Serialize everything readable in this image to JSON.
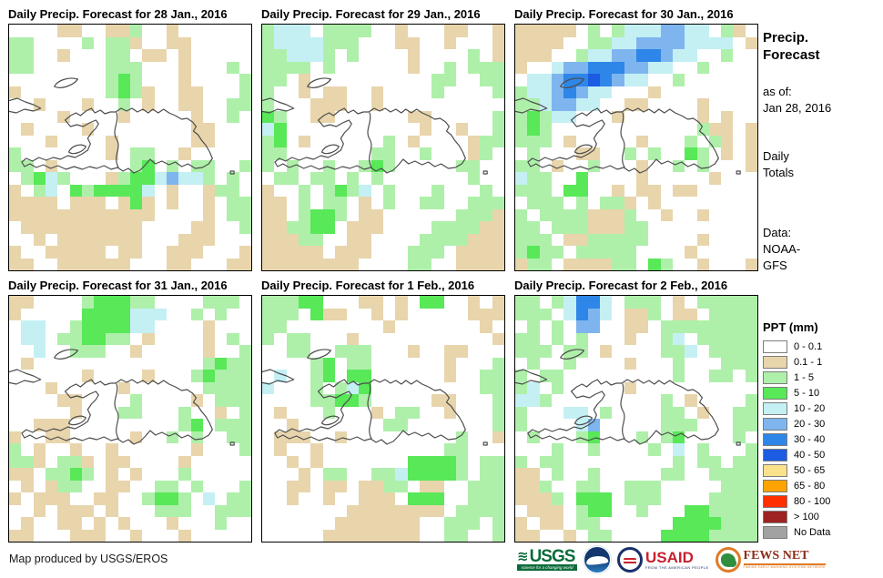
{
  "panels": [
    {
      "title": "Daily Precip. Forecast for 28 Jan., 2016",
      "grid": [
        "....tt..ttg..t......",
        "gg....g.ggt..tt.....",
        "gg..t...gg.tt.t.....",
        "gg......ggg...t...g.",
        "........gGg...t....g",
        "t.......gGgt..tt...g",
        "..t...t..g.t..tt..gg",
        "....t....t.....t..g.",
        ".t....t........tt...",
        "...t....t......tt...",
        "g.......t.gg..t.....",
        "gg.t......gG.g.gg..g",
        ".gGcg...tgGGcbccg.g.",
        "t.gc.GgGGGGc.t..tgg.",
        "tttt.ttt.tGt.t..t.gg",
        "tttttttttttt....t.gg",
        ".tttttttttt....tt..g",
        "..t.ttttttt...ttt...",
        "t..ttttt.tt..ttt...t",
        "tt..tttttt...tt...tt"
      ]
    },
    {
      "title": "Daily Precip. Forecast for 29 Jan., 2016",
      "grid": [
        "gccc.gggg..t...tt..t",
        "gccccggg...tt..t...t",
        "ggcccg.g....t....g.t",
        "gggg.g......t..g.ggg",
        "gg.t..........gg..gg",
        "g..t.tt..t....g....g",
        "g...ttt..t..........",
        "Gg..tt......tt.....g",
        "cG...........t..t..g",
        "gG.t......g.t....tgg",
        "gg.......gg..g...tg.",
        "g.g..g..gGg.....gg..",
        ".gg.gg.g.g.......g..",
        "t..g.gGgc.g...g...g.",
        "tt.g.gg.t.g..gg..ggg",
        "tt.gGGg.tt......gggt",
        "ttggGG.ttt....ggggtt",
        "tttgg..tt....ggggttt",
        "ttttt.ttt...ggg.tttt",
        "tttttttt....gg..tttt"
      ]
    },
    {
      "title": "Daily Precip. Forecast for 30 Jan., 2016",
      "grid": [
        "ttttt.g.gcccbbcc.gt.",
        "tttt..ggccbbbbcccc.t",
        "ttt..gccbbBBbcc..g..",
        "t..cbbBBBbbcc..g....",
        ".ccbBBDBbcc..g......",
        "gccbBbcc...t........",
        "ggcbbcc..tt....t....",
        "gGgcc...t......t.t..",
        "gGg............gtt.t",
        "ggg.t.....t...g.gt.t",
        ".g...tt..g.g..Gg.t.t",
        "gg.t..g...t..g.g...t",
        "cgg..G....t.....t...",
        "ggg.GG..t.tt.tt.....",
        ".ggg.g.ggt.t........",
        "g.ggggtttg..t..t....",
        "gg.gggtttgg.........",
        "ggg.ttggggg....t....",
        "gGgg.ggggg....t.....",
        "tgg.ttttgg.Gg..t...t"
      ]
    },
    {
      "title": "Daily Precip. Forecast for 31 Jan., 2016",
      "grid": [
        "tt....gGGGgg....ggg.",
        "t.....GGGGccc..g.g..",
        ".cc..gGGGGcc....t...",
        ".cc.ggGGgg.t....t.g.",
        "..c..ggg..t.....t..g",
        ".t..............gGgg",
        "......t....t...gGggg",
        "...t.....t......gggg",
        "....tt....g....t.ggg",
        ".....t...gg...g..t.g",
        "..ttt.........gG.ggg",
        "t..tt.....t..g.g..gg",
        "g.t..t..t......t...g",
        "ggt.ggt.tt....t.....",
        "tt.ggGg.t.t...g.....",
        ".t.tgg..tt..gg.g...g",
        "t.ttt..tt..gGGg.c.gg",
        "..t.ttt.t...ggg..ggg",
        ".t..tt.t.t...t...g..",
        "tt...ttt..t...t....."
      ]
    },
    {
      "title": "Daily Precip. Forecast for 1 Feb., 2016",
      "grid": [
        "gggGG...tt.t.GG..t.t",
        "ggg.Gtt..t.t.....ttt",
        "gg........t.......t.",
        "g.gg...t...........t",
        "..gg..ggg...t..tt...",
        "....gG.gg......t...g",
        ".c..gG.GG......t..gg",
        "c...g.gcG.........gg",
        "....ggGGg.....tt...g",
        ".t...g...t.gg..t...g",
        "..t.......gg.......g",
        ".ttt..t.........g..t",
        ".t..t..........gg...",
        "..t.t.......GGGGg.gg",
        "...t.gg..ggcGGGGg.gg",
        "..tt.tt.ttgg.tt..ggg",
        "..t..t..ttt.GGG..ggg",
        ".......tttttttt.gggg",
        "......ttttttt..ggg.g",
        ".....tttttttt..gg..g"
      ]
    },
    {
      "title": "Daily Precip. Forecast for 2 Feb., 2016",
      "grid": [
        "gg.gcBBc.ggg.t.ggggg",
        "ggg.cBbc.ttg.tt.gggg",
        ".g.g.bb..tt.gggggggg",
        "gg.g.g...t..gc.ggggg",
        "ggg.gg.t....ggc.gggg",
        ".g..g....t...g...ggg",
        "g.gg.........g..gg.g",
        "gc.g.....t..........",
        "ccg.........g.t....g",
        "g...cc.g....gg.t..gg",
        "g....cb.....ggg...gg",
        ".g...gG...g.gG....g.",
        "...g..g....g.c.g...g",
        "g.gg.........g.gg.gg",
        "tt.g..g.....gg..gggg",
        "ttg..gg..ggg.....ggg",
        "tttg.GGG.ggg....gggg",
        ".ttt.gGG..g...GGgggg",
        "t.tt.gg......GGGGggg",
        "tt..t.gg....GGGGgggg"
      ]
    }
  ],
  "sidebar": {
    "title_line1": "Precip.",
    "title_line2": "Forecast",
    "as_of_label": "as of:",
    "as_of_date": "Jan 28, 2016",
    "totals_line1": "Daily",
    "totals_line2": "Totals",
    "data_label": "Data:",
    "data_line1": "NOAA-",
    "data_line2": "GFS"
  },
  "legend": {
    "title": "PPT (mm)",
    "items": [
      {
        "label": "0 - 0.1",
        "color": "#ffffff",
        "key": "."
      },
      {
        "label": "0.1 - 1",
        "color": "#e8d5ac",
        "key": "t"
      },
      {
        "label": "1 - 5",
        "color": "#aef0aa",
        "key": "g"
      },
      {
        "label": "5 - 10",
        "color": "#58e858",
        "key": "G"
      },
      {
        "label": "10 - 20",
        "color": "#c4f0f4",
        "key": "c"
      },
      {
        "label": "20 - 30",
        "color": "#7fb5ee",
        "key": "b"
      },
      {
        "label": "30 - 40",
        "color": "#2e86e8",
        "key": "B"
      },
      {
        "label": "40 - 50",
        "color": "#1c5ce2",
        "key": "D"
      },
      {
        "label": "50 - 65",
        "color": "#fae28a",
        "key": "y"
      },
      {
        "label": "65 - 80",
        "color": "#ffa300",
        "key": "o"
      },
      {
        "label": "80 - 100",
        "color": "#fe2f00",
        "key": "r"
      },
      {
        "label": "> 100",
        "color": "#9e2222",
        "key": "R"
      },
      {
        "label": "No Data",
        "color": "#a2a2a2",
        "key": "n"
      }
    ]
  },
  "footer": {
    "credit": "Map produced by USGS/EROS",
    "logos": {
      "usgs_name": "USGS",
      "usgs_wave": "≋",
      "usgs_tagline": "science for a changing world",
      "usaid_name": "USAID",
      "usaid_tagline": "FROM THE AMERICAN PEOPLE",
      "fews_name": "FEWS NET",
      "fews_tagline": "FAMINE EARLY WARNING SYSTEMS NETWORK"
    }
  },
  "map_style": {
    "outline_color": "#4d4d4d"
  }
}
